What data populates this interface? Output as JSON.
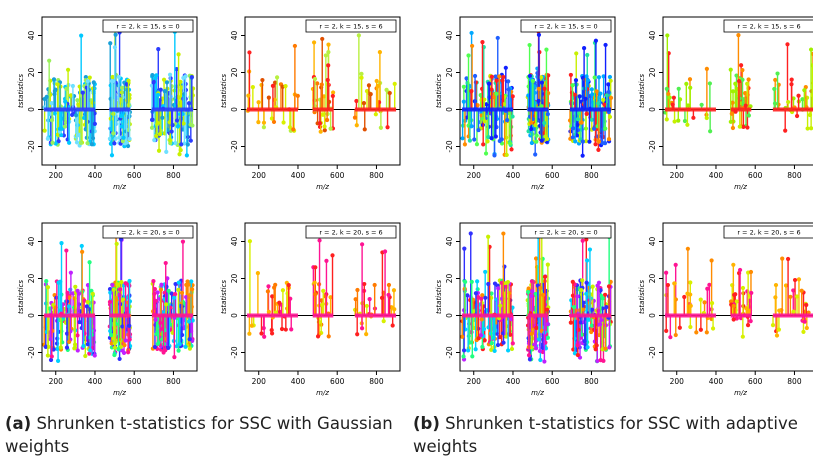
{
  "chart_data": [
    {
      "type": "scatter",
      "panel": "a",
      "row": 0,
      "col": 0,
      "label": "r = 2, k = 15, s = 0",
      "xlabel": "m/z",
      "ylabel": "tstatistics",
      "xticks": [
        200,
        400,
        600,
        800
      ],
      "yticks": [
        -20,
        0,
        20,
        40
      ],
      "xlim": [
        130,
        920
      ],
      "ylim": [
        -30,
        50
      ],
      "colors": [
        "#2b3cff",
        "#00c8ff",
        "#18a0d8",
        "#6fe0ff",
        "#c8f000",
        "#9af05a"
      ],
      "sparse": false
    },
    {
      "type": "scatter",
      "panel": "a",
      "row": 0,
      "col": 1,
      "label": "r = 2, k = 15, s = 6",
      "xlabel": "m/z",
      "ylabel": "tstatistics",
      "xticks": [
        200,
        400,
        600,
        800
      ],
      "yticks": [
        -20,
        0,
        20,
        40
      ],
      "xlim": [
        130,
        920
      ],
      "ylim": [
        -30,
        50
      ],
      "colors": [
        "#ff2020",
        "#ff7a00",
        "#ffb400",
        "#d8f000",
        "#b8f040",
        "#e05000"
      ],
      "sparse": true
    },
    {
      "type": "scatter",
      "panel": "b",
      "row": 0,
      "col": 0,
      "label": "r = 2, k = 15, s = 0",
      "xlabel": "m/z",
      "ylabel": "tstatistics",
      "xticks": [
        200,
        400,
        600,
        800
      ],
      "yticks": [
        -20,
        0,
        20,
        40
      ],
      "xlim": [
        130,
        920
      ],
      "ylim": [
        -30,
        50
      ],
      "colors": [
        "#1020ff",
        "#2060ff",
        "#00a8ff",
        "#50ff50",
        "#ff2020",
        "#ff8c00",
        "#c8f000",
        "#20e0a0"
      ],
      "sparse": false
    },
    {
      "type": "scatter",
      "panel": "b",
      "row": 0,
      "col": 1,
      "label": "r = 2, k = 15, s = 6",
      "xlabel": "m/z",
      "ylabel": "tstatistics",
      "xticks": [
        200,
        400,
        600,
        800
      ],
      "yticks": [
        -20,
        0,
        20,
        40
      ],
      "xlim": [
        130,
        920
      ],
      "ylim": [
        -30,
        50
      ],
      "colors": [
        "#ff2020",
        "#ff8c00",
        "#c8f000",
        "#50f050",
        "#a0f000"
      ],
      "sparse": true
    },
    {
      "type": "scatter",
      "panel": "a",
      "row": 1,
      "col": 0,
      "label": "r = 2, k = 20, s = 0",
      "xlabel": "m/z",
      "ylabel": "tstatistics",
      "xticks": [
        200,
        400,
        600,
        800
      ],
      "yticks": [
        -20,
        0,
        20,
        40
      ],
      "xlim": [
        130,
        920
      ],
      "ylim": [
        -30,
        50
      ],
      "colors": [
        "#ff1493",
        "#c020ff",
        "#3030ff",
        "#00d0ff",
        "#20ff80",
        "#ff8c00",
        "#c8f000"
      ],
      "sparse": false
    },
    {
      "type": "scatter",
      "panel": "a",
      "row": 1,
      "col": 1,
      "label": "r = 2, k = 20, s = 6",
      "xlabel": "m/z",
      "ylabel": "tstatistics",
      "xticks": [
        200,
        400,
        600,
        800
      ],
      "yticks": [
        -20,
        0,
        20,
        40
      ],
      "xlim": [
        130,
        920
      ],
      "ylim": [
        -30,
        50
      ],
      "colors": [
        "#ff1493",
        "#ff2020",
        "#ff7a00",
        "#ffb400",
        "#d8f000"
      ],
      "sparse": true
    },
    {
      "type": "scatter",
      "panel": "b",
      "row": 1,
      "col": 0,
      "label": "r = 2, k = 20, s = 0",
      "xlabel": "m/z",
      "ylabel": "tstatistics",
      "xticks": [
        200,
        400,
        600,
        800
      ],
      "yticks": [
        -20,
        0,
        20,
        40
      ],
      "xlim": [
        130,
        920
      ],
      "ylim": [
        -30,
        50
      ],
      "colors": [
        "#ff1493",
        "#c020ff",
        "#3030ff",
        "#00d0ff",
        "#20ff80",
        "#ff2020",
        "#ff8c00",
        "#c8f000"
      ],
      "sparse": false
    },
    {
      "type": "scatter",
      "panel": "b",
      "row": 1,
      "col": 1,
      "label": "r = 2, k = 20, s = 6",
      "xlabel": "m/z",
      "ylabel": "tstatistics",
      "xticks": [
        200,
        400,
        600,
        800
      ],
      "yticks": [
        -20,
        0,
        20,
        40
      ],
      "xlim": [
        130,
        920
      ],
      "ylim": [
        -30,
        50
      ],
      "colors": [
        "#ff1493",
        "#ff2020",
        "#ff8c00",
        "#ffb400",
        "#d8f000"
      ],
      "sparse": true
    }
  ],
  "captions": {
    "a": {
      "tag": "(a)",
      "text": " Shrunken t-statistics for SSC with Gaussian weights"
    },
    "b": {
      "tag": "(b)",
      "text": " Shrunken t-statistics for SSC with adaptive weights"
    }
  }
}
